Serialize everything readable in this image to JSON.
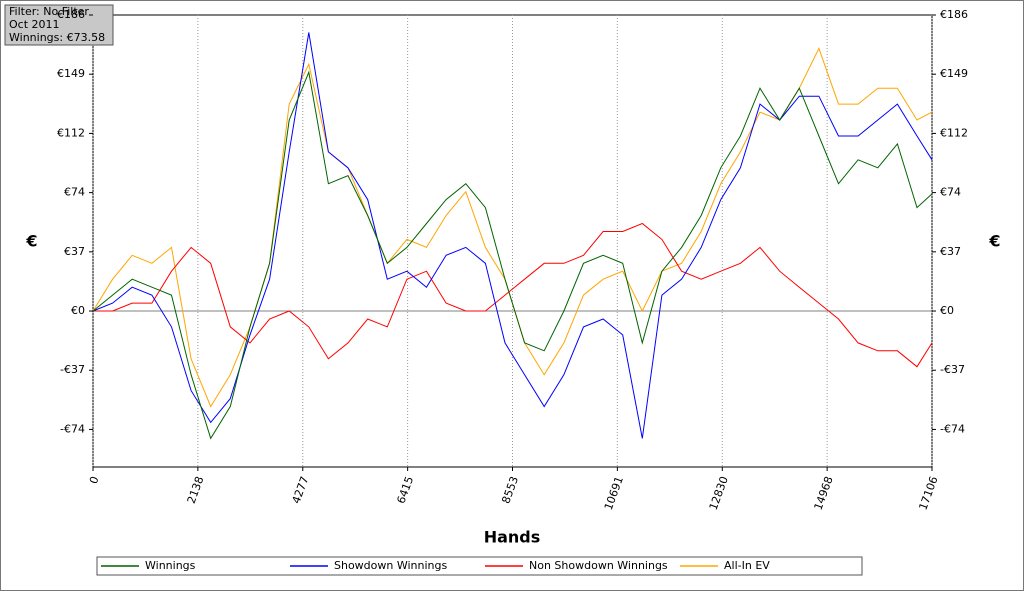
{
  "chart_data": {
    "type": "line",
    "info": [
      "Filter: No Filter",
      "Oct 2011",
      "Winnings: €73.58"
    ],
    "xlabel": "Hands",
    "ylabel": "€",
    "y2label": "€",
    "x": [
      0,
      400,
      800,
      1200,
      1600,
      2000,
      2400,
      2800,
      3200,
      3600,
      4000,
      4400,
      4800,
      5200,
      5600,
      6000,
      6400,
      6800,
      7200,
      7600,
      8000,
      8400,
      8800,
      9200,
      9600,
      10000,
      10400,
      10800,
      11200,
      11600,
      12000,
      12400,
      12800,
      13200,
      13600,
      14000,
      14400,
      14800,
      15200,
      15600,
      16000,
      16400,
      16800,
      17106
    ],
    "series": [
      {
        "name": "Winnings",
        "color": "#006400",
        "values": [
          0,
          10,
          20,
          15,
          10,
          -40,
          -80,
          -60,
          -10,
          30,
          120,
          150,
          80,
          85,
          60,
          30,
          40,
          55,
          70,
          80,
          65,
          20,
          -20,
          -25,
          0,
          30,
          35,
          30,
          -20,
          25,
          40,
          60,
          90,
          110,
          140,
          120,
          140,
          110,
          80,
          95,
          90,
          105,
          65,
          73.58
        ]
      },
      {
        "name": "Showdown Winnings",
        "color": "#0000ff",
        "values": [
          0,
          5,
          15,
          10,
          -10,
          -50,
          -70,
          -55,
          -15,
          20,
          100,
          175,
          100,
          90,
          70,
          20,
          25,
          15,
          35,
          40,
          30,
          -20,
          -40,
          -60,
          -40,
          -10,
          -5,
          -15,
          -80,
          10,
          20,
          40,
          70,
          90,
          130,
          120,
          135,
          135,
          110,
          110,
          120,
          130,
          110,
          95
        ]
      },
      {
        "name": "Non Showdown Winnings",
        "color": "#ff0000",
        "values": [
          0,
          0,
          5,
          5,
          25,
          40,
          30,
          -10,
          -20,
          -5,
          0,
          -10,
          -30,
          -20,
          -5,
          -10,
          20,
          25,
          5,
          0,
          0,
          10,
          20,
          30,
          30,
          35,
          50,
          50,
          55,
          45,
          25,
          20,
          25,
          30,
          40,
          25,
          15,
          5,
          -5,
          -20,
          -25,
          -25,
          -35,
          -20
        ]
      },
      {
        "name": "All-In EV",
        "color": "#ffa500",
        "values": [
          0,
          20,
          35,
          30,
          40,
          -30,
          -60,
          -40,
          -10,
          30,
          130,
          155,
          100,
          90,
          60,
          30,
          45,
          40,
          60,
          75,
          40,
          20,
          -20,
          -40,
          -20,
          10,
          20,
          25,
          0,
          25,
          30,
          50,
          80,
          100,
          125,
          120,
          140,
          165,
          130,
          130,
          140,
          140,
          120,
          125
        ]
      }
    ],
    "xlim": [
      0,
      17106
    ],
    "xticks": [
      0,
      2138,
      4277,
      6415,
      8553,
      10691,
      12830,
      14968,
      17106
    ],
    "ylim": [
      -98,
      186
    ],
    "yticks": [
      {
        "value": -74.4,
        "label": "-€74"
      },
      {
        "value": -37.2,
        "label": "-€37"
      },
      {
        "value": 0,
        "label": "€0"
      },
      {
        "value": 37.2,
        "label": "€37"
      },
      {
        "value": 74.4,
        "label": "€74"
      },
      {
        "value": 111.6,
        "label": "€112"
      },
      {
        "value": 148.8,
        "label": "€149"
      },
      {
        "value": 186,
        "label": "€186"
      }
    ],
    "grid": true
  }
}
